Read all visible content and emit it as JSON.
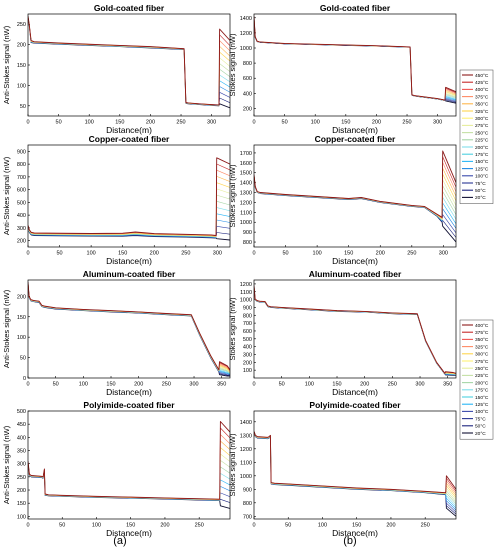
{
  "panel_labels": [
    "(a)",
    "(b)"
  ],
  "legends": [
    {
      "entries": [
        "450°C",
        "425°C",
        "400°C",
        "375°C",
        "350°C",
        "325°C",
        "300°C",
        "275°C",
        "250°C",
        "225°C",
        "200°C",
        "175°C",
        "150°C",
        "125°C",
        "100°C",
        "75°C",
        "50°C",
        "20°C"
      ]
    },
    {
      "entries": [
        "400°C",
        "375°C",
        "350°C",
        "325°C",
        "300°C",
        "275°C",
        "250°C",
        "225°C",
        "200°C",
        "175°C",
        "150°C",
        "125°C",
        "100°C",
        "75°C",
        "50°C",
        "20°C"
      ]
    }
  ],
  "chart_data": [
    {
      "type": "line",
      "title": "Gold-coated fiber",
      "xlabel": "Distance(m)",
      "ylabel": "Anti-Stokes signal (nW)",
      "xlim": [
        0,
        330
      ],
      "ylim": [
        25,
        275
      ],
      "xticks": [
        0,
        50,
        100,
        150,
        200,
        250,
        300
      ],
      "yticks": [
        50,
        100,
        150,
        200,
        250
      ],
      "grid": false,
      "end_region": [
        312,
        330
      ],
      "series": [
        {
          "name": "450°C",
          "x": [
            0,
            2,
            5,
            10,
            50,
            100,
            150,
            200,
            255,
            258,
            262,
            280,
            300,
            312,
            313,
            330
          ],
          "y": [
            270,
            250,
            210,
            207,
            204,
            201,
            198,
            195,
            190,
            58,
            57,
            55,
            53,
            52,
            238,
            210
          ]
        },
        {
          "name": "20°C",
          "x": [
            0,
            2,
            5,
            10,
            50,
            100,
            150,
            200,
            255,
            258,
            262,
            280,
            300,
            312,
            313,
            330
          ],
          "y": [
            262,
            248,
            205,
            204,
            201,
            198,
            195,
            192,
            188,
            56,
            55,
            53,
            51,
            50,
            55,
            45
          ]
        }
      ]
    },
    {
      "type": "line",
      "title": "Gold-coated fiber",
      "xlabel": "Distance(m)",
      "ylabel": "Stokes signal (nW)",
      "xlim": [
        0,
        330
      ],
      "ylim": [
        100,
        1450
      ],
      "xticks": [
        0,
        50,
        100,
        150,
        200,
        250,
        300
      ],
      "yticks": [
        200,
        400,
        600,
        800,
        1000,
        1200,
        1400
      ],
      "grid": false,
      "end_region": [
        312,
        330
      ],
      "series": [
        {
          "name": "450°C",
          "x": [
            0,
            2,
            5,
            10,
            50,
            100,
            150,
            200,
            255,
            258,
            262,
            300,
            312,
            313,
            330
          ],
          "y": [
            1420,
            1150,
            1090,
            1080,
            1060,
            1050,
            1040,
            1030,
            1015,
            380,
            370,
            330,
            310,
            480,
            420
          ]
        },
        {
          "name": "20°C",
          "x": [
            0,
            2,
            5,
            10,
            50,
            100,
            150,
            200,
            255,
            258,
            262,
            300,
            312,
            313,
            330
          ],
          "y": [
            1400,
            1140,
            1085,
            1075,
            1055,
            1045,
            1035,
            1025,
            1010,
            375,
            365,
            325,
            305,
            300,
            270
          ]
        }
      ]
    },
    {
      "type": "line",
      "title": "Copper-coated fiber",
      "xlabel": "Distance(m)",
      "ylabel": "Anti-Stokes signal (nW)",
      "xlim": [
        0,
        320
      ],
      "ylim": [
        150,
        950
      ],
      "xticks": [
        0,
        50,
        100,
        150,
        200,
        250,
        300
      ],
      "yticks": [
        200,
        300,
        400,
        500,
        600,
        700,
        800,
        900
      ],
      "grid": false,
      "end_region": [
        298,
        320
      ],
      "series": [
        {
          "name": "450°C",
          "x": [
            0,
            2,
            5,
            10,
            50,
            100,
            150,
            170,
            200,
            250,
            290,
            298,
            299,
            320
          ],
          "y": [
            320,
            285,
            265,
            260,
            258,
            256,
            258,
            268,
            255,
            250,
            245,
            240,
            850,
            800
          ]
        },
        {
          "name": "20°C",
          "x": [
            0,
            2,
            5,
            10,
            50,
            100,
            150,
            170,
            200,
            250,
            290,
            298,
            299,
            320
          ],
          "y": [
            310,
            265,
            245,
            240,
            238,
            236,
            235,
            240,
            232,
            228,
            222,
            220,
            215,
            205
          ]
        }
      ]
    },
    {
      "type": "line",
      "title": "Copper-coated fiber",
      "xlabel": "Distance(m)",
      "ylabel": "Stokes signal (nW)",
      "xlim": [
        0,
        320
      ],
      "ylim": [
        750,
        1780
      ],
      "xticks": [
        0,
        50,
        100,
        150,
        200,
        250,
        300
      ],
      "yticks": [
        800,
        900,
        1000,
        1100,
        1200,
        1300,
        1400,
        1500,
        1600,
        1700
      ],
      "grid": false,
      "end_region": [
        298,
        320
      ],
      "series": [
        {
          "name": "450°C",
          "x": [
            0,
            2,
            5,
            10,
            50,
            100,
            150,
            170,
            200,
            250,
            270,
            290,
            298,
            299,
            320
          ],
          "y": [
            1480,
            1360,
            1310,
            1300,
            1280,
            1260,
            1240,
            1250,
            1210,
            1170,
            1160,
            1080,
            1050,
            1720,
            1400
          ]
        },
        {
          "name": "20°C",
          "x": [
            0,
            2,
            5,
            10,
            50,
            100,
            150,
            170,
            200,
            250,
            270,
            290,
            298,
            299,
            320
          ],
          "y": [
            1470,
            1350,
            1300,
            1290,
            1270,
            1250,
            1230,
            1240,
            1200,
            1160,
            1150,
            1060,
            1000,
            960,
            800
          ]
        }
      ]
    },
    {
      "type": "line",
      "title": "Aluminum-coated fiber",
      "xlabel": "Distance(m)",
      "ylabel": "Anti-Stokes signal (nW)",
      "xlim": [
        0,
        365
      ],
      "ylim": [
        0,
        240
      ],
      "xticks": [
        0,
        50,
        100,
        150,
        200,
        250,
        300,
        350
      ],
      "yticks": [
        0,
        50,
        100,
        150,
        200
      ],
      "grid": false,
      "end_region": [
        345,
        365
      ],
      "series": [
        {
          "name": "400°C",
          "x": [
            0,
            2,
            5,
            10,
            20,
            25,
            30,
            50,
            100,
            150,
            200,
            250,
            295,
            310,
            330,
            345,
            346,
            360,
            365
          ],
          "y": [
            235,
            200,
            192,
            190,
            188,
            178,
            176,
            172,
            168,
            165,
            162,
            158,
            155,
            110,
            55,
            20,
            40,
            30,
            20
          ]
        },
        {
          "name": "20°C",
          "x": [
            0,
            2,
            5,
            10,
            20,
            25,
            30,
            50,
            100,
            150,
            200,
            250,
            295,
            310,
            330,
            345,
            346,
            360,
            365
          ],
          "y": [
            232,
            197,
            189,
            187,
            185,
            175,
            173,
            169,
            165,
            162,
            159,
            155,
            152,
            105,
            50,
            15,
            8,
            5,
            5
          ]
        }
      ]
    },
    {
      "type": "line",
      "title": "Aluminum-coated fiber",
      "xlabel": "Distance(m)",
      "ylabel": "Stokes signal (nW)",
      "xlim": [
        0,
        365
      ],
      "ylim": [
        0,
        1250
      ],
      "xticks": [
        0,
        50,
        100,
        150,
        200,
        250,
        300,
        350
      ],
      "yticks": [
        100,
        200,
        300,
        400,
        500,
        600,
        700,
        800,
        900,
        1000,
        1100,
        1200
      ],
      "grid": false,
      "end_region": [
        345,
        365
      ],
      "series": [
        {
          "name": "400°C",
          "x": [
            0,
            2,
            5,
            10,
            20,
            25,
            30,
            50,
            100,
            150,
            200,
            250,
            295,
            310,
            330,
            345,
            346,
            360,
            365
          ],
          "y": [
            1180,
            1010,
            990,
            980,
            975,
            920,
            910,
            900,
            880,
            860,
            850,
            830,
            820,
            480,
            200,
            60,
            80,
            70,
            60
          ]
        },
        {
          "name": "20°C",
          "x": [
            0,
            2,
            5,
            10,
            20,
            25,
            30,
            50,
            100,
            150,
            200,
            250,
            295,
            310,
            330,
            345,
            346,
            360,
            365
          ],
          "y": [
            1170,
            1000,
            980,
            970,
            965,
            910,
            900,
            890,
            870,
            850,
            840,
            820,
            810,
            470,
            190,
            50,
            40,
            35,
            35
          ]
        }
      ]
    },
    {
      "type": "line",
      "title": "Polyimide-coated fiber",
      "xlabel": "Distance(m)",
      "ylabel": "Anti-Stokes signal (nW)",
      "xlim": [
        0,
        295
      ],
      "ylim": [
        90,
        500
      ],
      "xticks": [
        0,
        50,
        100,
        150,
        200,
        250
      ],
      "yticks": [
        100,
        150,
        200,
        250,
        300,
        350,
        400,
        450,
        500
      ],
      "grid": false,
      "end_region": [
        280,
        295
      ],
      "series": [
        {
          "name": "400°C",
          "x": [
            0,
            2,
            5,
            20,
            22,
            24,
            25,
            30,
            50,
            100,
            150,
            200,
            250,
            280,
            281,
            295
          ],
          "y": [
            310,
            260,
            255,
            252,
            250,
            280,
            185,
            182,
            180,
            176,
            173,
            170,
            167,
            165,
            460,
            420
          ]
        },
        {
          "name": "20°C",
          "x": [
            0,
            2,
            5,
            20,
            22,
            24,
            25,
            30,
            50,
            100,
            150,
            200,
            250,
            280,
            281,
            295
          ],
          "y": [
            300,
            255,
            250,
            247,
            245,
            270,
            180,
            178,
            176,
            172,
            169,
            166,
            162,
            160,
            140,
            130
          ]
        }
      ]
    },
    {
      "type": "line",
      "title": "Polyimide-coated fiber",
      "xlabel": "Distance(m)",
      "ylabel": "Stokes signal (nW)",
      "xlim": [
        0,
        295
      ],
      "ylim": [
        680,
        1480
      ],
      "xticks": [
        0,
        50,
        100,
        150,
        200,
        250
      ],
      "yticks": [
        700,
        800,
        900,
        1000,
        1100,
        1200,
        1300,
        1400
      ],
      "grid": false,
      "end_region": [
        280,
        295
      ],
      "series": [
        {
          "name": "400°C",
          "x": [
            0,
            2,
            5,
            20,
            22,
            24,
            25,
            30,
            50,
            100,
            150,
            200,
            250,
            280,
            281,
            295
          ],
          "y": [
            1330,
            1300,
            1290,
            1285,
            1290,
            1300,
            950,
            945,
            940,
            925,
            910,
            900,
            885,
            875,
            1000,
            900
          ]
        },
        {
          "name": "20°C",
          "x": [
            0,
            2,
            5,
            20,
            22,
            24,
            25,
            30,
            50,
            100,
            150,
            200,
            250,
            280,
            281,
            295
          ],
          "y": [
            1320,
            1290,
            1280,
            1275,
            1280,
            1290,
            940,
            935,
            930,
            915,
            900,
            890,
            875,
            860,
            760,
            700
          ]
        }
      ]
    }
  ]
}
